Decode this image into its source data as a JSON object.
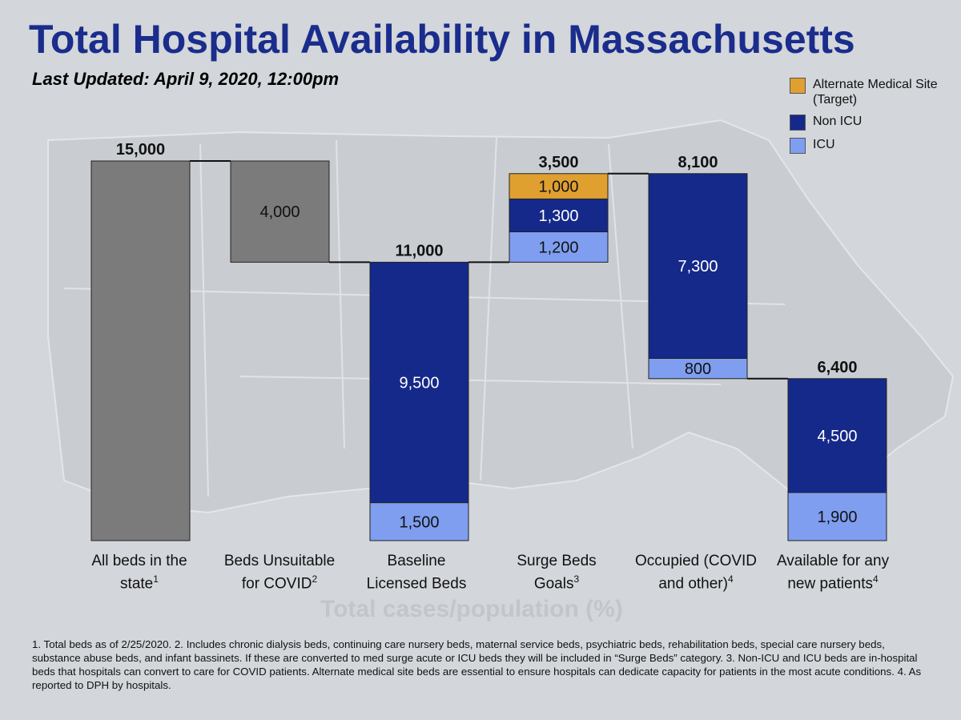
{
  "header": {
    "title": "Total Hospital Availability in Massachusetts",
    "subtitle": "Last Updated: April 9, 2020, 12:00pm"
  },
  "legend": {
    "items": [
      {
        "label": "Alternate Medical Site (Target)",
        "color": "#e0a030"
      },
      {
        "label": "Non ICU",
        "color": "#15298a"
      },
      {
        "label": "ICU",
        "color": "#7f9ef0"
      }
    ]
  },
  "categories": [
    {
      "text": "All beds in the state",
      "note": "1"
    },
    {
      "text": "Beds Unsuitable for COVID",
      "note": "2"
    },
    {
      "text": "Baseline Licensed Beds",
      "note": ""
    },
    {
      "text": "Surge Beds Goals",
      "note": "3"
    },
    {
      "text": "Occupied (COVID and other)",
      "note": "4"
    },
    {
      "text": "Available for any new patients",
      "note": "4"
    }
  ],
  "chart_data": {
    "type": "bar",
    "subtype": "waterfall",
    "title": "Total Hospital Availability in Massachusetts",
    "ylim": [
      0,
      15000
    ],
    "grid": false,
    "legend_position": "top-right",
    "categories": [
      "All beds in the state",
      "Beds Unsuitable for COVID",
      "Baseline Licensed Beds",
      "Surge Beds Goals",
      "Occupied (COVID and other)",
      "Available for any new patients"
    ],
    "bars": [
      {
        "base": 0,
        "total_label": "15,000",
        "segments": [
          {
            "series": "Total",
            "value": 15000,
            "label": ""
          }
        ]
      },
      {
        "base": 11000,
        "total_label": "",
        "segments": [
          {
            "series": "Total",
            "value": 4000,
            "label": "4,000"
          }
        ]
      },
      {
        "base": 0,
        "total_label": "11,000",
        "segments": [
          {
            "series": "ICU",
            "value": 1500,
            "label": "1,500"
          },
          {
            "series": "Non ICU",
            "value": 9500,
            "label": "9,500"
          }
        ]
      },
      {
        "base": 11000,
        "total_label": "3,500",
        "segments": [
          {
            "series": "ICU",
            "value": 1200,
            "label": "1,200"
          },
          {
            "series": "Non ICU",
            "value": 1300,
            "label": "1,300"
          },
          {
            "series": "Alternate Medical Site (Target)",
            "value": 1000,
            "label": "1,000"
          }
        ]
      },
      {
        "base": 6400,
        "total_label": "8,100",
        "segments": [
          {
            "series": "ICU",
            "value": 800,
            "label": "800"
          },
          {
            "series": "Non ICU",
            "value": 7300,
            "label": "7,300"
          }
        ]
      },
      {
        "base": 0,
        "total_label": "6,400",
        "segments": [
          {
            "series": "ICU",
            "value": 1900,
            "label": "1,900"
          },
          {
            "series": "Non ICU",
            "value": 4500,
            "label": "4,500"
          }
        ]
      }
    ],
    "colors": {
      "Total": "#7b7b7b",
      "Non ICU": "#15298a",
      "ICU": "#7f9ef0",
      "Alternate Medical Site (Target)": "#e0a030"
    },
    "segment_label_colors": {
      "Total": "#111111",
      "Non ICU": "#ffffff",
      "ICU": "#111111",
      "Alternate Medical Site (Target)": "#111111"
    }
  },
  "watermark": "Total cases/population (%)",
  "footnote": "1. Total beds as of 2/25/2020. 2. Includes chronic dialysis beds, continuing care nursery beds, maternal service beds, psychiatric beds, rehabilitation beds, special care nursery beds, substance abuse beds, and infant bassinets. If these are converted to med surge acute or ICU beds they will be included in “Surge Beds” category. 3. Non-ICU and ICU beds are in-hospital beds that hospitals can convert to care for COVID patients. Alternate medical site beds are essential to ensure hospitals can dedicate capacity for patients in the most acute conditions. 4. As reported to DPH by hospitals."
}
